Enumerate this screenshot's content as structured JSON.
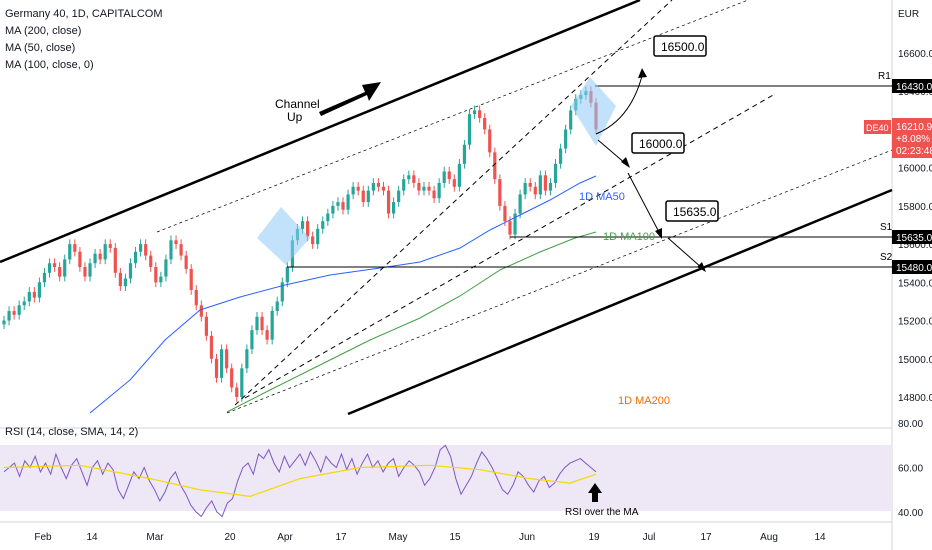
{
  "header": {
    "title": "Germany 40, 1D, CAPITALCOM",
    "ma_labels": [
      "MA (200, close)",
      "MA (50, close)",
      "MA (100, close, 0)"
    ]
  },
  "price_axis": {
    "currency": "EUR",
    "ticks": [
      16600,
      16400,
      16200,
      16000,
      15800,
      15600,
      15400,
      15200,
      15000,
      14800
    ]
  },
  "rsi_axis": {
    "ticks": [
      80,
      60,
      40
    ]
  },
  "price_tags": {
    "r1": "16430.0",
    "s1": "15635.0",
    "s2": "15480.0",
    "symbol": "DE40",
    "last": "16210.9",
    "change": "+8.08%",
    "countdown": "02:23:48"
  },
  "level_labels": {
    "r1": "R1",
    "s1": "S1",
    "s2": "S2"
  },
  "annotations": {
    "channel_line1": "Channel",
    "channel_line2": "Up",
    "target1": "16500.0",
    "target2": "16000.0",
    "target3": "15635.0",
    "ma50": "1D MA50",
    "ma100": "1D MA100",
    "ma200": "1D MA200",
    "rsi_note": "RSI over the MA"
  },
  "rsi_title": "RSI (14, close, SMA, 14, 2)",
  "colors": {
    "up": "#26a69a",
    "down": "#ef5350",
    "ma50": "#2962ff",
    "ma100": "#43a047",
    "ma200": "#ef6c00",
    "rsi": "#7e57c2",
    "rsi_ma": "#f5d800",
    "rsi_band": "#ede7f6",
    "shape": "#90caf9"
  },
  "chart_data": {
    "type": "candlestick",
    "title": "Germany 40, 1D, CAPITALCOM",
    "x_labels": [
      "Feb",
      "14",
      "Mar",
      "20",
      "Apr",
      "17",
      "May",
      "15",
      "Jun",
      "19",
      "Jul",
      "17",
      "Aug",
      "14"
    ],
    "ylim": [
      14700,
      16800
    ],
    "candles_approx": [
      {
        "period": "Feb",
        "close_range": [
          15100,
          15550
        ]
      },
      {
        "period": "Feb–Mar",
        "close_range": [
          15450,
          15650
        ]
      },
      {
        "period": "mid-Mar low",
        "close": 14800
      },
      {
        "period": "Apr",
        "close_range": [
          15600,
          15800
        ]
      },
      {
        "period": "May",
        "close_range": [
          15800,
          15950
        ]
      },
      {
        "period": "mid-May high",
        "close": 16300
      },
      {
        "period": "end-May low",
        "close": 15650
      },
      {
        "period": "Jun high",
        "close": 16400
      },
      {
        "period": "last",
        "close": 16210.9
      }
    ],
    "levels": {
      "R1": 16430,
      "S1": 15635,
      "S2": 15480
    },
    "targets": [
      16500,
      16000,
      15635
    ],
    "series": [
      {
        "name": "MA (50, close)",
        "approx": [
          [
            0,
            14750
          ],
          [
            60,
            15100
          ],
          [
            100,
            15500
          ],
          [
            130,
            15800
          ],
          [
            160,
            15950
          ]
        ]
      },
      {
        "name": "MA (100, close, 0)",
        "approx": [
          [
            40,
            14750
          ],
          [
            100,
            15200
          ],
          [
            140,
            15550
          ],
          [
            160,
            15660
          ]
        ]
      }
    ],
    "rsi": {
      "ylim": [
        35,
        85
      ],
      "band": [
        30,
        70
      ],
      "last_note": "RSI over the MA"
    }
  }
}
